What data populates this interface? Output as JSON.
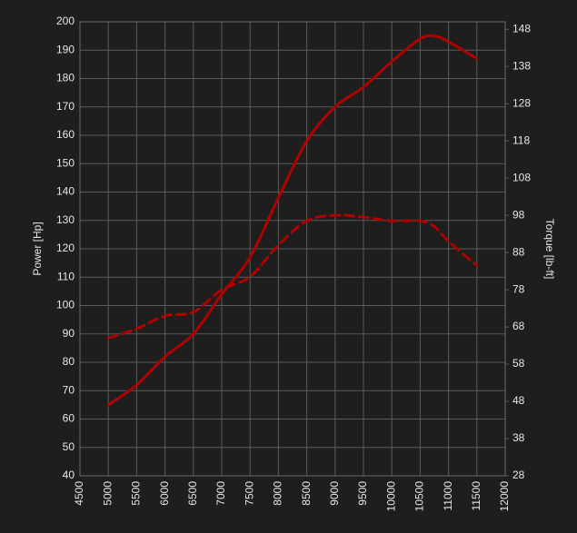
{
  "chart_data": {
    "type": "line",
    "y_label": "Power [Hp]",
    "y2_label": "Torque [lb-ft]",
    "x": [
      5000,
      5500,
      6000,
      6500,
      7000,
      7500,
      8000,
      8500,
      9000,
      9500,
      10000,
      10500,
      10750,
      11000,
      11500
    ],
    "series": [
      {
        "color": "#b00000",
        "dash": false,
        "values": [
          65,
          72,
          82,
          90,
          104,
          117,
          138,
          158,
          170,
          177,
          186,
          194,
          195,
          193,
          187
        ]
      },
      {
        "color": "#b00000",
        "dash": true,
        "axis": "y2",
        "values": [
          65,
          67.5,
          71,
          72,
          78,
          81.5,
          90,
          96.5,
          98,
          97.5,
          96.5,
          96.5,
          95,
          91,
          84.5
        ]
      }
    ],
    "xlim": [
      4500,
      12000
    ],
    "xticks": [
      4500,
      5000,
      5500,
      6000,
      6500,
      7000,
      7500,
      8000,
      8500,
      9000,
      9500,
      10000,
      10500,
      11000,
      11500,
      12000
    ],
    "ylim": [
      40,
      200
    ],
    "yticks": [
      40,
      50,
      60,
      70,
      80,
      90,
      100,
      110,
      120,
      130,
      140,
      150,
      160,
      170,
      180,
      190,
      200
    ],
    "y2lim": [
      28,
      150
    ],
    "y2ticks": [
      28,
      38,
      48,
      58,
      68,
      78,
      88,
      98,
      108,
      118,
      128,
      138,
      148
    ],
    "grid": true
  }
}
